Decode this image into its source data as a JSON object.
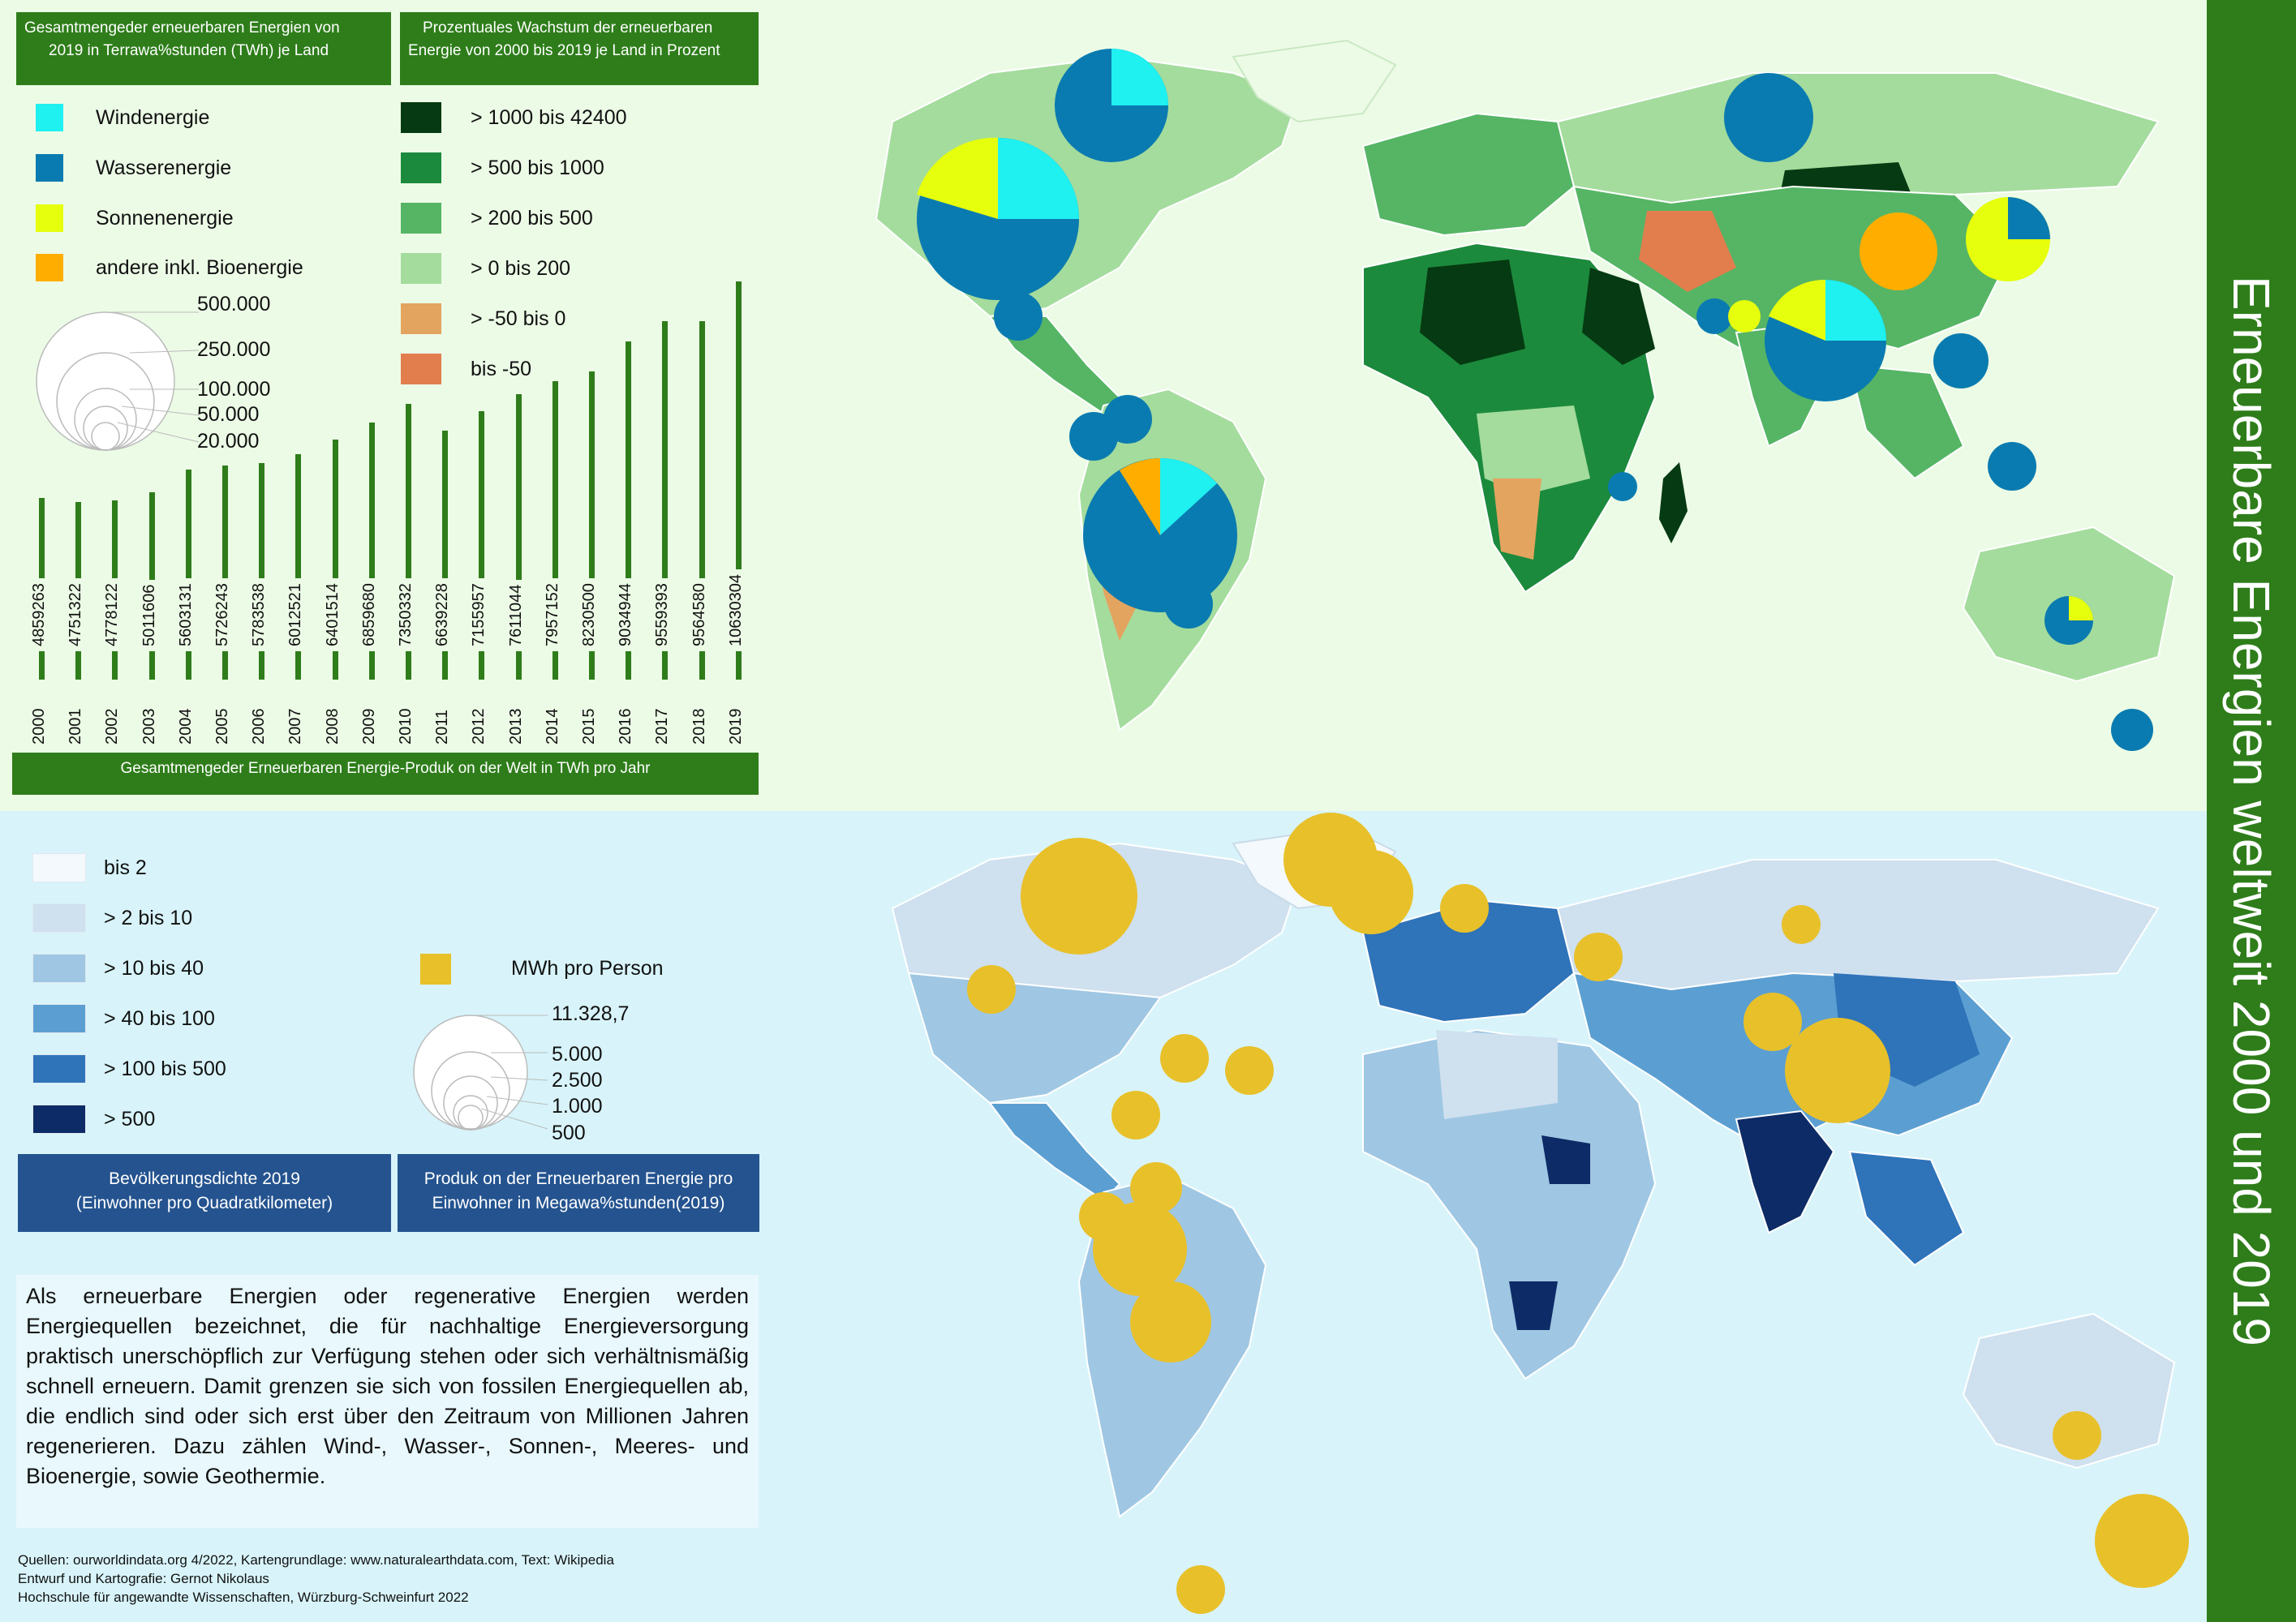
{
  "title": "Erneuerbare Energien weltweit 2000  und 2019",
  "top": {
    "header_left": [
      "Gesamtmengeder erneuerbaren  Energien von",
      "2019 in  Terrawa%stunden (TWh) je Land"
    ],
    "header_right": [
      "Prozentuales Wachstum der erneuerbaren",
      "Energie von 2000 bis 2019  je Land in Prozent"
    ],
    "energy_legend": [
      {
        "label": "Windenergie",
        "color": "#1ff0f0"
      },
      {
        "label": "Wasserenergie",
        "color": "#0a7bb0"
      },
      {
        "label": "Sonnenenergie",
        "color": "#e6ff0c"
      },
      {
        "label": "andere inkl. Bioenergie",
        "color": "#ffae00"
      }
    ],
    "size_legend": [
      "500.000",
      "250.000",
      "100.000",
      "50.000",
      "20.000"
    ],
    "growth_legend": [
      {
        "label": ">  1000 bis 42400",
        "color": "#053a12"
      },
      {
        "label": ">  500 bis 1000",
        "color": "#1c8a3c"
      },
      {
        "label": ">  200 bis 500",
        "color": "#55b565"
      },
      {
        "label": ">  0 bis 200",
        "color": "#a4dc9d"
      },
      {
        "label": ">  -50 bis 0",
        "color": "#e3a45f"
      },
      {
        "label": "bis -50",
        "color": "#e27e4e"
      }
    ],
    "bar_caption": "Gesamtmengeder Erneuerbaren Energie-Produk         on der Welt  in  TWh pro Jahr"
  },
  "chart_data": {
    "type": "bar",
    "title": "Gesamtmengeder Erneuerbaren Energie-Produk         on der Welt  in  TWh pro Jahr",
    "categories": [
      "2000",
      "2001",
      "2002",
      "2003",
      "2004",
      "2005",
      "2006",
      "2007",
      "2008",
      "2009",
      "2010",
      "2011",
      "2012",
      "2013",
      "2014",
      "2015",
      "2016",
      "2017",
      "2018",
      "2019"
    ],
    "values": [
      4859263,
      4751322,
      4778122,
      5011606,
      5603131,
      5726243,
      5783538,
      6012521,
      6401514,
      6859680,
      7350332,
      6639228,
      7155957,
      7611044,
      7957152,
      8230500,
      9034944,
      9559393,
      9564580,
      10630304
    ],
    "value_labels": [
      "4859263",
      "4751322",
      "4778122",
      "5011606",
      "5603131",
      "5726243",
      "5783538",
      "6012521",
      "6401514",
      "6859680",
      "7350332",
      "6639228",
      "7155957",
      "7611044",
      "7957152",
      "8230500",
      "9034944",
      "9559393",
      "9564580",
      "10630304"
    ]
  },
  "bottom": {
    "density_legend": [
      {
        "label": "bis 2",
        "color": "#f4f9fd"
      },
      {
        "label": ">  2 bis 10",
        "color": "#cfe0ef"
      },
      {
        "label": ">  10 bis 40",
        "color": "#9fc7e3"
      },
      {
        "label": ">  40 bis 100",
        "color": "#5b9fd2"
      },
      {
        "label": ">  100 bis 500",
        "color": "#2f73b9"
      },
      {
        "label": ">  500",
        "color": "#0d2b66"
      }
    ],
    "mwh_label": "MWh pro Person",
    "mwh_color": "#e8c02a",
    "mwh_sizes": [
      "11.328,7",
      "5.000",
      "2.500",
      "1.000",
      "500"
    ],
    "header_left": [
      "Bevölkerungsdichte 2019",
      "(Einwohner pro Quadratkilometer)"
    ],
    "header_right": [
      "Produk    on der Erneuerbaren Energie pro",
      "Einwohner in  Megawa%stunden(2019)"
    ],
    "description": "Als erneuerbare Energien oder regenerative Energien werden Energiequellen bezeichnet, die für nachhaltige Energieversorgung praktisch unerschöpflich zur Verfügung stehen oder sich verhältnismäßig schnell erneuern. Damit grenzen sie sich von fossilen Energiequellen ab, die endlich sind oder sich erst über den Zeitraum von Millionen Jahren regenerieren. Dazu zählen Wind-, Wasser-, Sonnen-, Meeres- und Bioenergie, sowie Geothermie.",
    "sources": [
      "Quellen: ourworldindata.org 4/2022, Kartengrundlage: www.naturalearthdata.com, Text: Wikipedia",
      "Entwurf und Kartografie:  Gernot Nikolaus",
      "Hochschule für angewandte Wissenschaften,  Würzburg-Schweinfurt 2022"
    ]
  }
}
